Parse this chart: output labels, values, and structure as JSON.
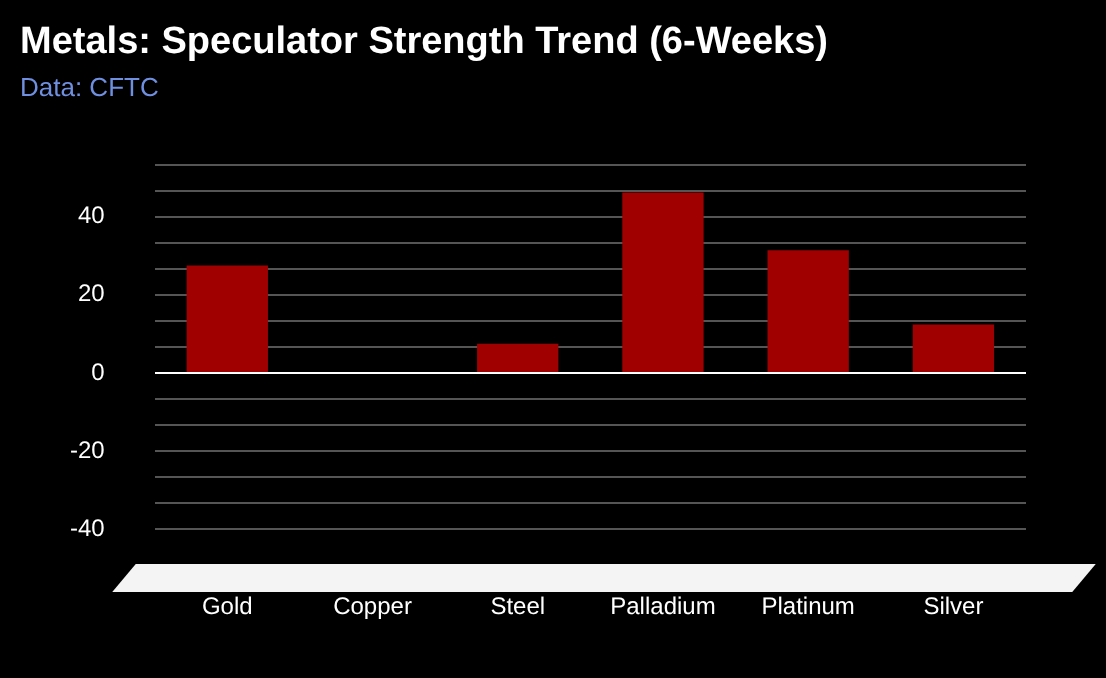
{
  "chart_data": {
    "type": "bar",
    "title": "Metals: Speculator Strength Trend (6-Weeks)",
    "subtitle": "Data: CFTC",
    "categories": [
      "Gold",
      "Copper",
      "Steel",
      "Palladium",
      "Platinum",
      "Silver"
    ],
    "values": [
      27.5,
      0,
      7.5,
      46.2,
      31.4,
      12.4
    ],
    "color": "#a00000",
    "ylim": [
      -40,
      53.3
    ],
    "yticks": [
      -40,
      {
        "value": -33.3,
        "label": null
      },
      {
        "value": -26.7,
        "label": null
      },
      -20,
      {
        "value": -13.3,
        "label": null
      },
      {
        "value": -6.7,
        "label": null
      },
      0,
      {
        "value": 6.7,
        "label": null
      },
      {
        "value": 13.3,
        "label": null
      },
      20,
      {
        "value": 26.7,
        "label": null
      },
      {
        "value": 33.3,
        "label": null
      },
      40,
      {
        "value": 46.7,
        "label": null
      },
      {
        "value": 53.3,
        "label": null
      }
    ],
    "grid": "y",
    "legend": false
  }
}
